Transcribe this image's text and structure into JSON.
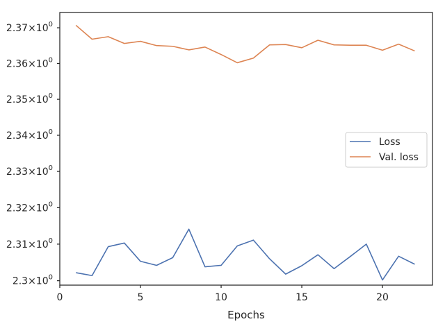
{
  "chart_data": {
    "type": "line",
    "title": "",
    "xlabel": "Epochs",
    "ylabel": "",
    "y_scale": "log",
    "xlim": [
      0,
      23.1
    ],
    "ylim": [
      2.2988,
      2.3743
    ],
    "grid": false,
    "legend_position": "center-right",
    "x_ticks": [
      0,
      5,
      10,
      15,
      20
    ],
    "y_ticks": [
      {
        "value": 2.3,
        "mantissa": "2.3",
        "base": "10",
        "exp": "0"
      },
      {
        "value": 2.31,
        "mantissa": "2.31",
        "base": "10",
        "exp": "0"
      },
      {
        "value": 2.32,
        "mantissa": "2.32",
        "base": "10",
        "exp": "0"
      },
      {
        "value": 2.33,
        "mantissa": "2.33",
        "base": "10",
        "exp": "0"
      },
      {
        "value": 2.34,
        "mantissa": "2.34",
        "base": "10",
        "exp": "0"
      },
      {
        "value": 2.35,
        "mantissa": "2.35",
        "base": "10",
        "exp": "0"
      },
      {
        "value": 2.36,
        "mantissa": "2.36",
        "base": "10",
        "exp": "0"
      },
      {
        "value": 2.37,
        "mantissa": "2.37",
        "base": "10",
        "exp": "0"
      }
    ],
    "x": [
      1,
      2,
      3,
      4,
      5,
      6,
      7,
      8,
      9,
      10,
      11,
      12,
      13,
      14,
      15,
      16,
      17,
      18,
      19,
      20,
      21,
      22
    ],
    "series": [
      {
        "name": "Loss",
        "color": "#4c72b0",
        "values": [
          2.3022,
          2.3014,
          2.3093,
          2.3103,
          2.3053,
          2.3042,
          2.3063,
          2.3141,
          2.3038,
          2.3042,
          2.3095,
          2.3111,
          2.306,
          2.3018,
          2.3041,
          2.3071,
          2.3033,
          2.3066,
          2.31,
          2.3002,
          2.3067,
          2.3045
        ]
      },
      {
        "name": "Val. loss",
        "color": "#dd8452",
        "values": [
          2.3707,
          2.3668,
          2.3675,
          2.3656,
          2.3662,
          2.365,
          2.3648,
          2.3638,
          2.3646,
          2.3625,
          2.3602,
          2.3615,
          2.3652,
          2.3653,
          2.3644,
          2.3665,
          2.3652,
          2.3651,
          2.3651,
          2.3637,
          2.3654,
          2.3635
        ]
      }
    ]
  }
}
